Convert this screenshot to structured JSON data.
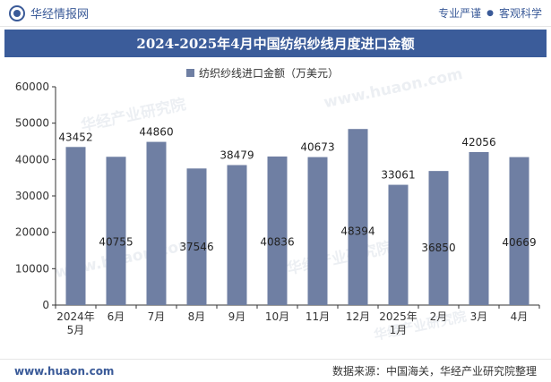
{
  "header": {
    "brand": "华经情报网",
    "slogan_left": "专业严谨",
    "slogan_sep": "●",
    "slogan_right": "客观科学"
  },
  "footer": {
    "site": "www.huaon.com",
    "source": "数据来源：中国海关，华经产业研究院整理"
  },
  "watermarks": [
    "华经产业研究院",
    "www.huaon.com"
  ],
  "chart_data": {
    "type": "bar",
    "title": "2024-2025年4月中国纺织纱线月度进口金额",
    "categories": [
      "2024年\n5月",
      "6月",
      "7月",
      "8月",
      "9月",
      "10月",
      "11月",
      "12月",
      "2025年\n1月",
      "2月",
      "3月",
      "4月"
    ],
    "series": [
      {
        "name": "纺织纱线进口金额（万美元）",
        "values": [
          43452,
          40755,
          44860,
          37546,
          38479,
          40836,
          40673,
          48394,
          33061,
          36850,
          42056,
          40669
        ],
        "label_position": [
          "top",
          "inside",
          "top",
          "inside",
          "top",
          "inside",
          "top",
          "inside",
          "top",
          "inside",
          "top",
          "inside"
        ]
      }
    ],
    "ylim": [
      0,
      60000
    ],
    "yticks": [
      0,
      10000,
      20000,
      30000,
      40000,
      50000,
      60000
    ],
    "xlabel": "",
    "ylabel": "",
    "grid": false,
    "legend_position": "top-center",
    "colors": {
      "bar": "#6f7fa3",
      "title_bg": "#3b5c9a",
      "brand": "#3a5a98"
    }
  }
}
